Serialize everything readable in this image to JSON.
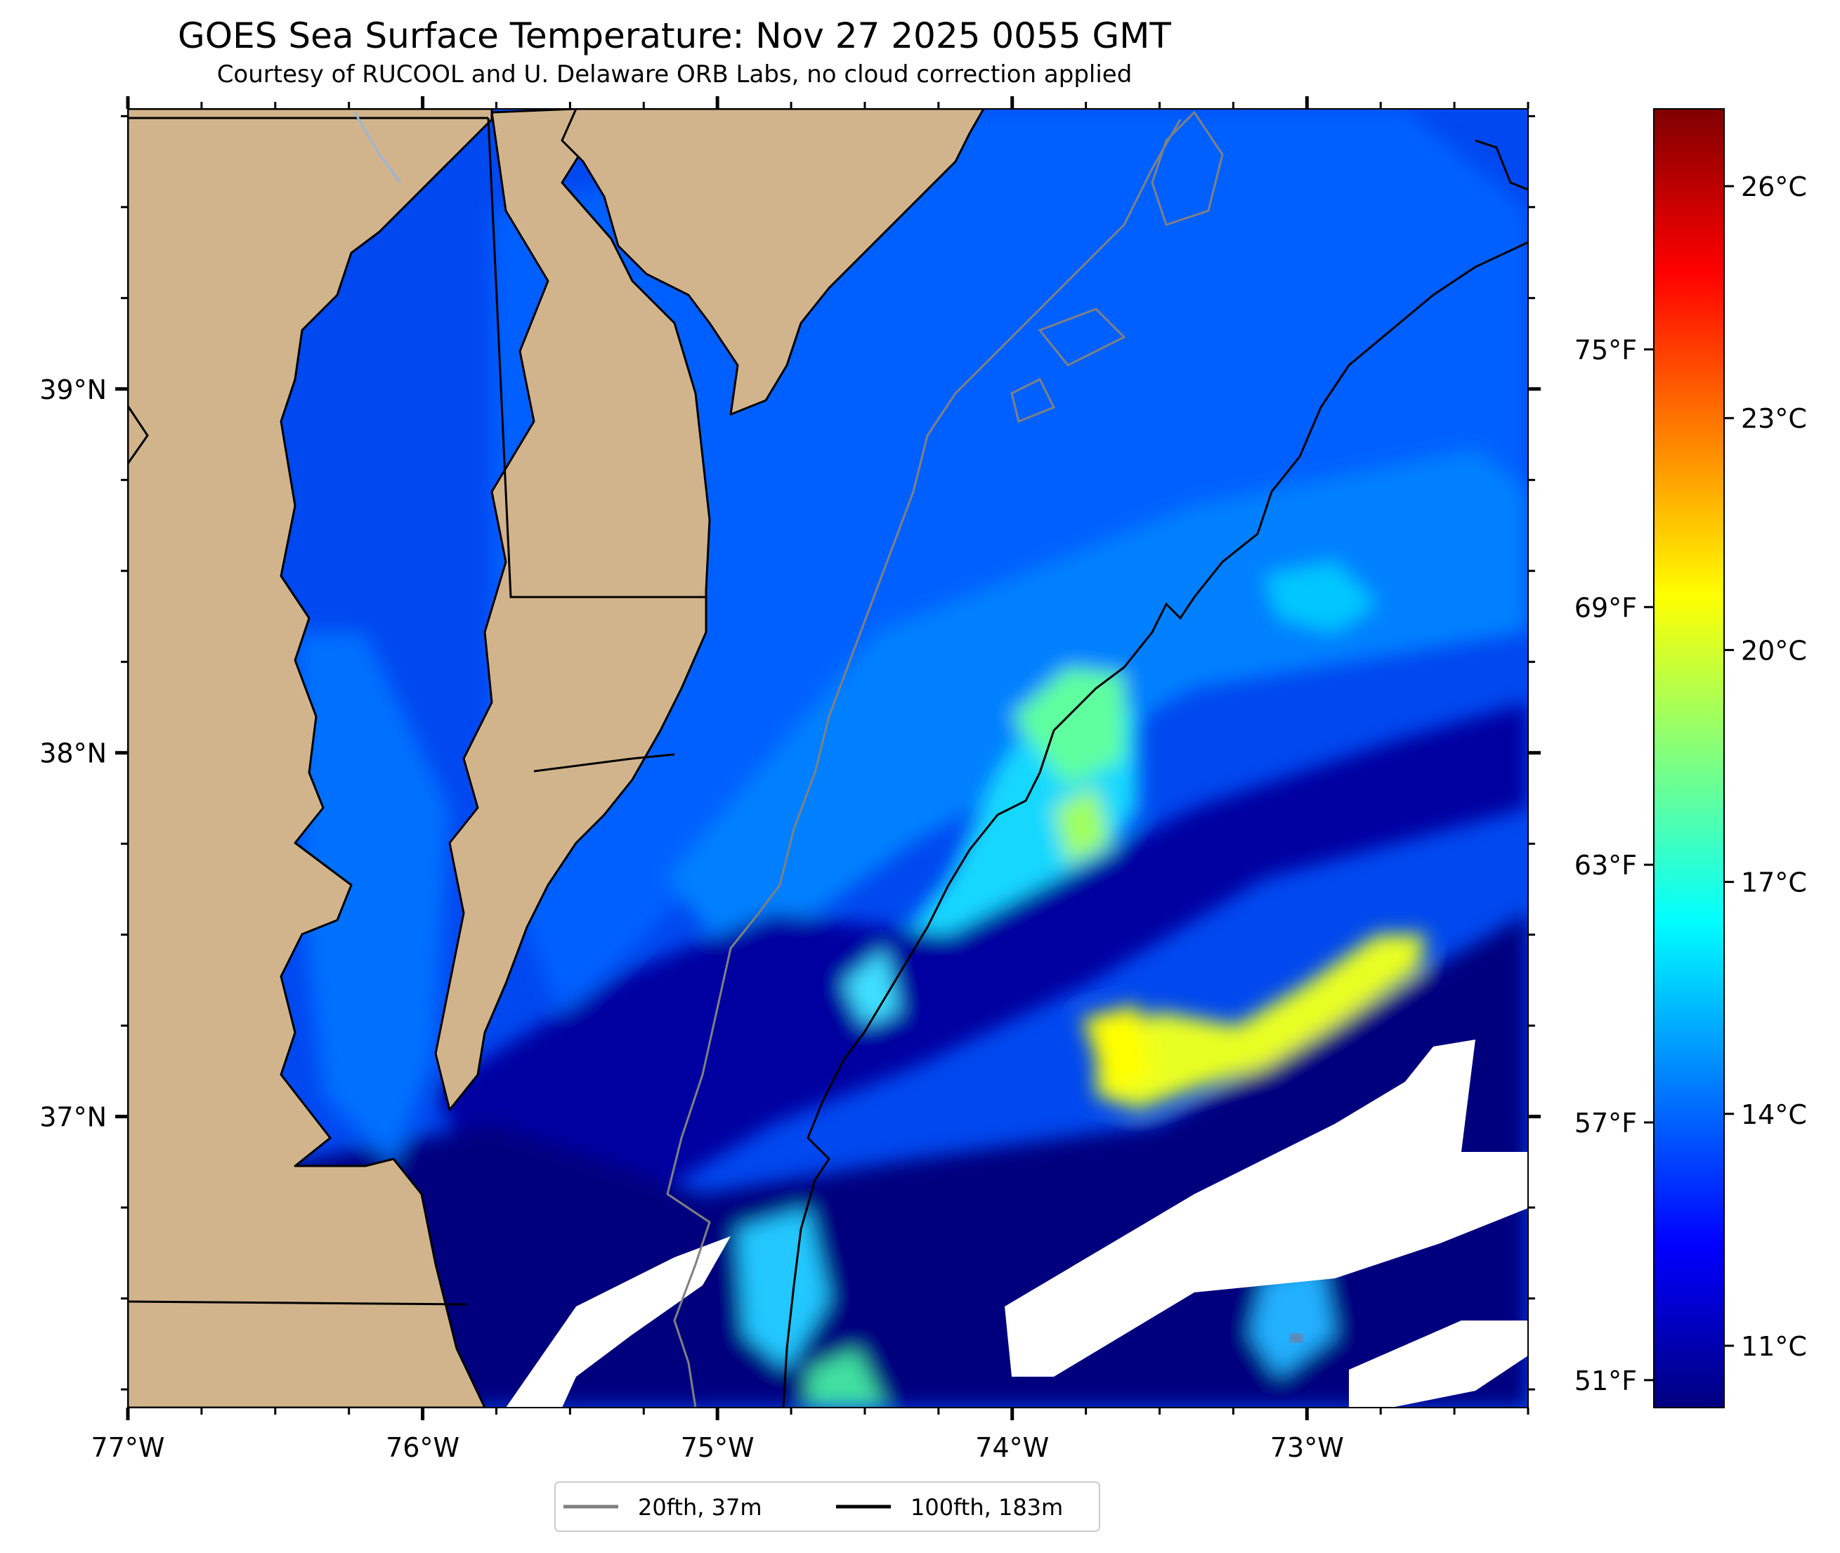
{
  "title": "GOES Sea Surface Temperature: Nov 27 2025 0055 GMT",
  "subtitle": "Courtesy of RUCOOL and U. Delaware ORB Labs, no cloud correction applied",
  "map": {
    "lon_range": [
      -77.0,
      -72.25
    ],
    "lat_range": [
      36.2,
      39.77
    ],
    "lon_ticks": [
      {
        "value": -77,
        "label": "77°W"
      },
      {
        "value": -76,
        "label": "76°W"
      },
      {
        "value": -75,
        "label": "75°W"
      },
      {
        "value": -74,
        "label": "74°W"
      },
      {
        "value": -73,
        "label": "73°W"
      }
    ],
    "lat_ticks": [
      {
        "value": 39,
        "label": "39°N"
      },
      {
        "value": 38,
        "label": "38°N"
      },
      {
        "value": 37,
        "label": "37°N"
      }
    ],
    "colors": {
      "land": "#d2b48c",
      "no_data": "#ffffff",
      "contour_20fth": "#808080",
      "contour_100fth": "#000000"
    }
  },
  "colorbar": {
    "min_c": 10.2,
    "max_c": 27.0,
    "celsius_ticks": [
      {
        "value": 11,
        "label": "11°C"
      },
      {
        "value": 14,
        "label": "14°C"
      },
      {
        "value": 17,
        "label": "17°C"
      },
      {
        "value": 20,
        "label": "20°C"
      },
      {
        "value": 23,
        "label": "23°C"
      },
      {
        "value": 26,
        "label": "26°C"
      }
    ],
    "fahrenheit_ticks": [
      {
        "value": 51,
        "label": "51°F"
      },
      {
        "value": 57,
        "label": "57°F"
      },
      {
        "value": 63,
        "label": "63°F"
      },
      {
        "value": 69,
        "label": "69°F"
      },
      {
        "value": 75,
        "label": "75°F"
      }
    ],
    "colormap": [
      "#00007f",
      "#0000ff",
      "#007fff",
      "#00ffff",
      "#7fff7f",
      "#ffff00",
      "#ff7f00",
      "#ff0000",
      "#7f0000"
    ]
  },
  "legend": {
    "items": [
      {
        "label": "20fth, 37m",
        "color": "#808080"
      },
      {
        "label": "100fth, 183m",
        "color": "#000000"
      }
    ]
  }
}
